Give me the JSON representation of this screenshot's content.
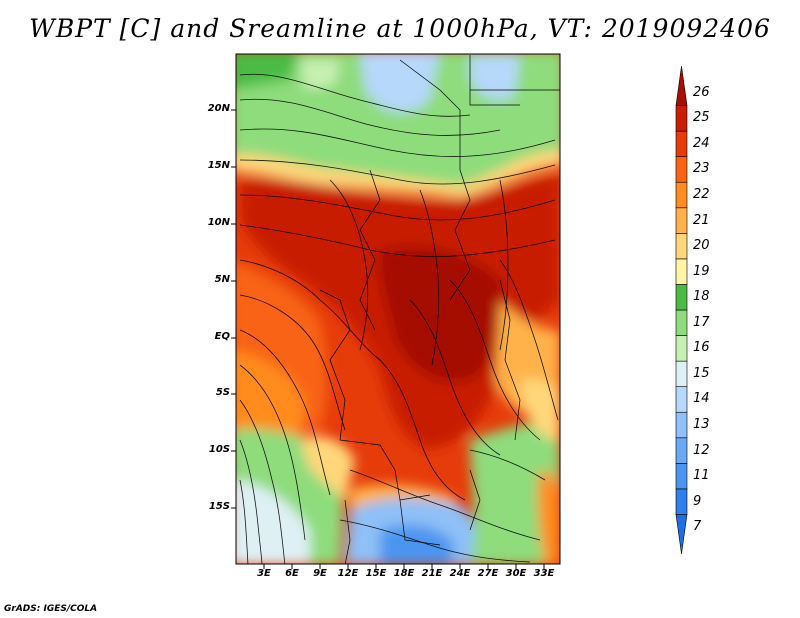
{
  "title": "WBPT [C] and Sreamline at 1000hPa, VT: 2019092406",
  "credit": "GrADS: IGES/COLA",
  "map": {
    "lat_labels": [
      "20N",
      "15N",
      "10N",
      "5N",
      "EQ",
      "5S",
      "10S",
      "15S"
    ],
    "lon_labels": [
      "3E",
      "6E",
      "9E",
      "12E",
      "15E",
      "18E",
      "21E",
      "24E",
      "27E",
      "30E",
      "33E"
    ]
  },
  "colorbar": {
    "labels": [
      "7",
      "9",
      "11",
      "12",
      "13",
      "14",
      "15",
      "16",
      "17",
      "18",
      "19",
      "20",
      "21",
      "22",
      "23",
      "24",
      "25",
      "26"
    ],
    "colors": [
      "#1e6ee6",
      "#2f80ec",
      "#4b95f0",
      "#6aa9f4",
      "#8fc0f7",
      "#b6d8fa",
      "#dff0f5",
      "#c8f0b4",
      "#8edc7c",
      "#4cbb44",
      "#fff5a6",
      "#ffd77a",
      "#ffb24a",
      "#ff8c1e",
      "#f86414",
      "#e63c0a",
      "#c81e05",
      "#a50f05"
    ]
  }
}
